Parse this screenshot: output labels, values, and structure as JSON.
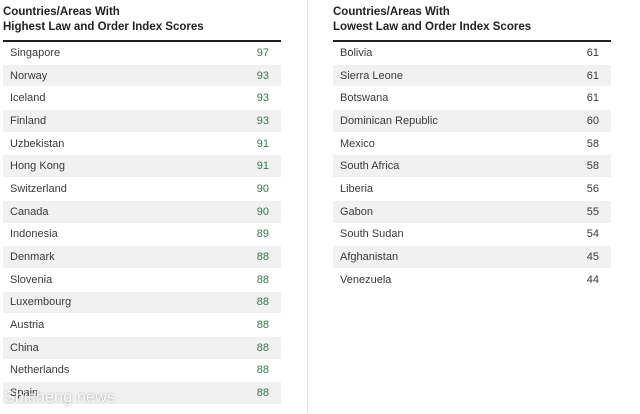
{
  "left": {
    "title_line1": "Countries/Areas With",
    "title_line2": "Highest Law and Order Index Scores",
    "rows": [
      {
        "name": "Singapore",
        "score": "97"
      },
      {
        "name": "Norway",
        "score": "93"
      },
      {
        "name": "Iceland",
        "score": "93"
      },
      {
        "name": "Finland",
        "score": "93"
      },
      {
        "name": "Uzbekistan",
        "score": "91"
      },
      {
        "name": "Hong Kong",
        "score": "91"
      },
      {
        "name": "Switzerland",
        "score": "90"
      },
      {
        "name": "Canada",
        "score": "90"
      },
      {
        "name": "Indonesia",
        "score": "89"
      },
      {
        "name": "Denmark",
        "score": "88"
      },
      {
        "name": "Slovenia",
        "score": "88"
      },
      {
        "name": "Luxembourg",
        "score": "88"
      },
      {
        "name": "Austria",
        "score": "88"
      },
      {
        "name": "China",
        "score": "88"
      },
      {
        "name": "Netherlands",
        "score": "88"
      },
      {
        "name": "Spain",
        "score": "88"
      }
    ]
  },
  "right": {
    "title_line1": "Countries/Areas With",
    "title_line2": "Lowest Law and Order Index Scores",
    "rows": [
      {
        "name": "Bolivia",
        "score": "61"
      },
      {
        "name": "Sierra Leone",
        "score": "61"
      },
      {
        "name": "Botswana",
        "score": "61"
      },
      {
        "name": "Dominican Republic",
        "score": "60"
      },
      {
        "name": "Mexico",
        "score": "58"
      },
      {
        "name": "South Africa",
        "score": "58"
      },
      {
        "name": "Liberia",
        "score": "56"
      },
      {
        "name": "Gabon",
        "score": "55"
      },
      {
        "name": "South Sudan",
        "score": "54"
      },
      {
        "name": "Afghanistan",
        "score": "45"
      },
      {
        "name": "Venezuela",
        "score": "44"
      }
    ]
  },
  "watermark": "Shicheng news",
  "colors": {
    "high_score": "#2f7d4c",
    "stripe": "#f1f1f1",
    "rule": "#222222"
  }
}
